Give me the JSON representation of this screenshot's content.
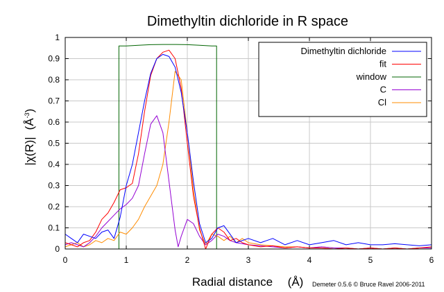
{
  "chart_data": {
    "type": "line",
    "title": "Dimethyltin dichloride in R space",
    "xlabel": "Radial distance",
    "xlabel_unit": "(Å)",
    "ylabel": "|χ(R)|",
    "ylabel_unit_prefix": "(Å",
    "ylabel_unit_exp": "-3",
    "ylabel_unit_suffix": ")",
    "credit": "Demeter 0.5.6 © Bruce Ravel 2006-2011",
    "xlim": [
      0,
      6
    ],
    "ylim": [
      0,
      1
    ],
    "xticks": [
      "0",
      "1",
      "2",
      "3",
      "4",
      "5",
      "6"
    ],
    "yticks": [
      "0",
      "0.1",
      "0.2",
      "0.3",
      "0.4",
      "0.5",
      "0.6",
      "0.7",
      "0.8",
      "0.9",
      "1"
    ],
    "grid": true,
    "legend_position": "top-right",
    "series": [
      {
        "name": "Dimethyltin dichloride",
        "color": "#0000ff",
        "x": [
          0,
          0.1,
          0.2,
          0.3,
          0.4,
          0.5,
          0.6,
          0.7,
          0.8,
          0.9,
          1.0,
          1.1,
          1.2,
          1.3,
          1.4,
          1.5,
          1.6,
          1.7,
          1.8,
          1.9,
          2.0,
          2.1,
          2.2,
          2.3,
          2.4,
          2.5,
          2.6,
          2.7,
          2.8,
          2.9,
          3.0,
          3.2,
          3.4,
          3.6,
          3.8,
          4.0,
          4.2,
          4.4,
          4.6,
          4.8,
          5.0,
          5.2,
          5.4,
          5.6,
          5.8,
          6.0
        ],
        "y": [
          0.07,
          0.05,
          0.03,
          0.07,
          0.06,
          0.05,
          0.08,
          0.09,
          0.05,
          0.15,
          0.3,
          0.4,
          0.55,
          0.7,
          0.83,
          0.9,
          0.92,
          0.91,
          0.86,
          0.74,
          0.55,
          0.32,
          0.12,
          0.03,
          0.05,
          0.1,
          0.11,
          0.07,
          0.03,
          0.04,
          0.05,
          0.03,
          0.05,
          0.02,
          0.04,
          0.02,
          0.03,
          0.04,
          0.02,
          0.03,
          0.02,
          0.02,
          0.025,
          0.02,
          0.015,
          0.02
        ]
      },
      {
        "name": "fit",
        "color": "#ff0000",
        "x": [
          0,
          0.1,
          0.2,
          0.3,
          0.4,
          0.5,
          0.6,
          0.7,
          0.8,
          0.9,
          1.0,
          1.1,
          1.2,
          1.3,
          1.4,
          1.5,
          1.6,
          1.7,
          1.8,
          1.9,
          2.0,
          2.1,
          2.2,
          2.3,
          2.4,
          2.5,
          2.6,
          2.7,
          2.8,
          2.9,
          3.0,
          3.2,
          3.4,
          3.6,
          3.8,
          4.0,
          4.2,
          4.4,
          4.6,
          4.8,
          5.0,
          5.2,
          5.4,
          5.6,
          5.8,
          6.0
        ],
        "y": [
          0.03,
          0.02,
          0.01,
          0.03,
          0.04,
          0.08,
          0.14,
          0.17,
          0.22,
          0.28,
          0.29,
          0.31,
          0.45,
          0.65,
          0.82,
          0.9,
          0.93,
          0.94,
          0.9,
          0.76,
          0.5,
          0.25,
          0.1,
          0.0,
          0.07,
          0.1,
          0.08,
          0.04,
          0.05,
          0.03,
          0.02,
          0.01,
          0.015,
          0.005,
          0.01,
          0.005,
          0.005,
          0.0,
          0.005,
          0.0,
          0.005,
          0.0,
          0.005,
          0.0,
          0.005,
          0.01
        ]
      },
      {
        "name": "window",
        "color": "#006400",
        "x": [
          0,
          0.88,
          0.88,
          1.0,
          1.2,
          1.4,
          1.6,
          1.8,
          2.0,
          2.2,
          2.4,
          2.48,
          2.48,
          6.0
        ],
        "y": [
          0,
          0,
          0.96,
          0.96,
          0.963,
          0.966,
          0.967,
          0.967,
          0.966,
          0.963,
          0.96,
          0.96,
          0,
          0
        ]
      },
      {
        "name": "C",
        "color": "#9400d3",
        "x": [
          0,
          0.1,
          0.2,
          0.3,
          0.4,
          0.5,
          0.6,
          0.7,
          0.8,
          0.9,
          1.0,
          1.1,
          1.2,
          1.3,
          1.4,
          1.5,
          1.6,
          1.7,
          1.8,
          1.85,
          1.9,
          2.0,
          2.1,
          2.2,
          2.3,
          2.4,
          2.5,
          2.6,
          2.7,
          2.8,
          3.0,
          3.2,
          3.4,
          3.6,
          3.8,
          4.0,
          4.2,
          4.4,
          4.6,
          4.8,
          5.0,
          5.2,
          5.4,
          5.6,
          5.8,
          6.0
        ],
        "y": [
          0.02,
          0.03,
          0.02,
          0.01,
          0.03,
          0.06,
          0.1,
          0.13,
          0.16,
          0.19,
          0.21,
          0.24,
          0.3,
          0.45,
          0.59,
          0.63,
          0.55,
          0.32,
          0.09,
          0.01,
          0.06,
          0.14,
          0.12,
          0.06,
          0.02,
          0.04,
          0.07,
          0.06,
          0.04,
          0.03,
          0.02,
          0.015,
          0.01,
          0.005,
          0.01,
          0.005,
          0.01,
          0.005,
          0.005,
          0.0,
          0.005,
          0.0,
          0.005,
          0.0,
          0.005,
          0.005
        ]
      },
      {
        "name": "Cl",
        "color": "#ff8c00",
        "x": [
          0,
          0.1,
          0.2,
          0.3,
          0.4,
          0.5,
          0.6,
          0.7,
          0.8,
          0.9,
          1.0,
          1.1,
          1.2,
          1.3,
          1.4,
          1.5,
          1.6,
          1.7,
          1.8,
          1.9,
          2.0,
          2.1,
          2.2,
          2.3,
          2.4,
          2.5,
          2.6,
          2.7,
          2.8,
          2.9,
          3.0,
          3.2,
          3.4,
          3.6,
          3.8,
          4.0,
          4.2,
          4.4,
          4.6,
          4.8,
          5.0,
          5.2,
          5.4,
          5.6,
          5.8,
          6.0
        ],
        "y": [
          0.01,
          0.02,
          0.03,
          0.01,
          0.02,
          0.04,
          0.03,
          0.05,
          0.04,
          0.08,
          0.07,
          0.1,
          0.14,
          0.2,
          0.25,
          0.3,
          0.4,
          0.6,
          0.84,
          0.8,
          0.55,
          0.28,
          0.09,
          0.02,
          0.07,
          0.06,
          0.04,
          0.06,
          0.03,
          0.05,
          0.03,
          0.02,
          0.015,
          0.01,
          0.01,
          0.005,
          0.01,
          0.005,
          0.005,
          0.0,
          0.005,
          0.0,
          0.005,
          0.0,
          0.005,
          0.005
        ]
      }
    ]
  }
}
